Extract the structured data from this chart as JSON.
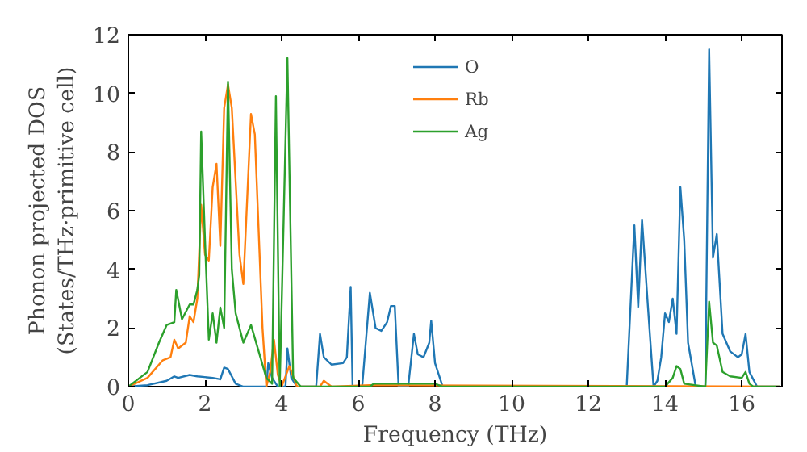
{
  "chart_data": {
    "type": "line",
    "xlabel": "Frequency (THz)",
    "ylabel": "Phonon projected DOS\n(States/THz·primitive cell)",
    "xlim": [
      0,
      17.05
    ],
    "ylim": [
      0,
      12
    ],
    "xticks": [
      0,
      2,
      4,
      6,
      8,
      10,
      12,
      14,
      16
    ],
    "yticks": [
      0,
      2,
      4,
      6,
      8,
      10,
      12
    ],
    "grid": false,
    "legend": "top",
    "series": [
      {
        "name": "O",
        "color": "#1f77b4",
        "x": [
          0,
          0.5,
          1,
          1.2,
          1.3,
          1.6,
          1.8,
          2.2,
          2.4,
          2.5,
          2.6,
          2.8,
          3,
          3.6,
          3.65,
          3.75,
          3.9,
          4.1,
          4.15,
          4.25,
          4.4,
          4.9,
          5.0,
          5.1,
          5.3,
          5.6,
          5.7,
          5.8,
          5.85,
          6.1,
          6.3,
          6.45,
          6.6,
          6.75,
          6.85,
          6.95,
          7.05,
          7.3,
          7.45,
          7.55,
          7.7,
          7.85,
          7.9,
          8.0,
          8.2,
          13.0,
          13.2,
          13.3,
          13.4,
          13.55,
          13.7,
          13.8,
          13.9,
          14.0,
          14.1,
          14.2,
          14.3,
          14.4,
          14.5,
          14.6,
          14.8,
          15.05,
          15.15,
          15.25,
          15.35,
          15.5,
          15.7,
          15.9,
          16.0,
          16.1,
          16.2,
          16.4,
          17
        ],
        "values": [
          0,
          0.05,
          0.2,
          0.35,
          0.3,
          0.4,
          0.35,
          0.3,
          0.25,
          0.65,
          0.6,
          0.1,
          0,
          0,
          0.8,
          0.3,
          0,
          0,
          1.3,
          0.3,
          0,
          0,
          1.8,
          1.0,
          0.75,
          0.8,
          1.0,
          3.4,
          0,
          0,
          3.2,
          2.0,
          1.9,
          2.2,
          2.75,
          2.75,
          0,
          0,
          1.8,
          1.1,
          1.0,
          1.5,
          2.25,
          0.8,
          0,
          0,
          5.5,
          2.7,
          5.7,
          2.8,
          0,
          0.2,
          1.0,
          2.5,
          2.2,
          3.0,
          1.8,
          6.8,
          5.0,
          1.5,
          0,
          0,
          11.5,
          4.4,
          5.2,
          1.8,
          1.2,
          1.0,
          1.1,
          1.8,
          0.5,
          0,
          0
        ]
      },
      {
        "name": "Rb",
        "color": "#ff7f0e",
        "x": [
          0,
          0.5,
          0.9,
          1.1,
          1.2,
          1.3,
          1.5,
          1.6,
          1.7,
          1.8,
          1.9,
          2.0,
          2.1,
          2.2,
          2.3,
          2.4,
          2.5,
          2.6,
          2.7,
          2.9,
          3.0,
          3.2,
          3.3,
          3.5,
          3.6,
          3.7,
          3.8,
          3.9,
          4.0,
          4.2,
          4.4,
          5.0,
          5.1,
          5.3,
          6.3,
          17
        ],
        "values": [
          0,
          0.3,
          0.9,
          1.0,
          1.6,
          1.3,
          1.5,
          2.4,
          2.2,
          3.0,
          6.2,
          4.5,
          4.3,
          6.8,
          7.6,
          4.8,
          9.5,
          10.3,
          9.5,
          4.5,
          3.5,
          9.3,
          8.6,
          2.0,
          0,
          0.5,
          1.6,
          0.4,
          0,
          0.7,
          0,
          0,
          0.2,
          0,
          0.05,
          0
        ]
      },
      {
        "name": "Ag",
        "color": "#2ca02c",
        "x": [
          0,
          0.5,
          0.8,
          1.0,
          1.2,
          1.25,
          1.4,
          1.6,
          1.7,
          1.8,
          1.85,
          1.9,
          2.0,
          2.1,
          2.2,
          2.3,
          2.4,
          2.5,
          2.6,
          2.7,
          2.8,
          2.9,
          3.0,
          3.2,
          3.4,
          3.6,
          3.75,
          3.85,
          3.95,
          4.15,
          4.3,
          4.5,
          6.3,
          6.4,
          8,
          8.2,
          14.0,
          14.2,
          14.3,
          14.4,
          14.5,
          15.05,
          15.15,
          15.25,
          15.35,
          15.5,
          15.7,
          16.0,
          16.1,
          16.2,
          16.3,
          17
        ],
        "values": [
          0,
          0.5,
          1.5,
          2.1,
          2.2,
          3.3,
          2.3,
          2.8,
          2.8,
          3.3,
          3.8,
          8.7,
          5.0,
          1.6,
          2.5,
          1.5,
          2.7,
          2.0,
          10.4,
          4.0,
          2.5,
          2.0,
          1.5,
          2.1,
          1.2,
          0.3,
          0.1,
          9.9,
          0,
          11.2,
          0.3,
          0,
          0,
          0.1,
          0.1,
          0,
          0,
          0.3,
          0.7,
          0.6,
          0.1,
          0,
          2.9,
          1.5,
          1.4,
          0.5,
          0.35,
          0.3,
          0.5,
          0.1,
          0,
          0
        ]
      }
    ]
  }
}
